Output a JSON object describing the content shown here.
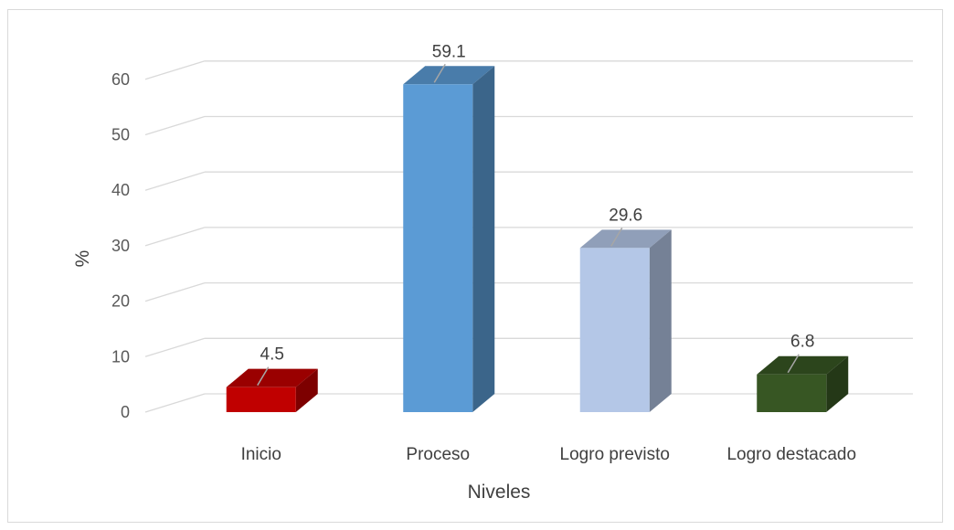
{
  "chart_data": {
    "type": "bar",
    "style": "3d-column",
    "categories": [
      "Inicio",
      "Proceso",
      "Logro previsto",
      "Logro destacado"
    ],
    "values": [
      4.5,
      59.1,
      29.6,
      6.8
    ],
    "data_labels": [
      "4.5",
      "59.1",
      "29.6",
      "6.8"
    ],
    "colors": [
      "#c00000",
      "#5b9bd5",
      "#b4c7e7",
      "#375623"
    ],
    "xlabel": "Niveles",
    "ylabel": "%",
    "ylim": [
      0,
      60
    ],
    "yticks": [
      "0",
      "10",
      "20",
      "30",
      "40",
      "50",
      "60"
    ],
    "grid": true,
    "legend": "none"
  }
}
